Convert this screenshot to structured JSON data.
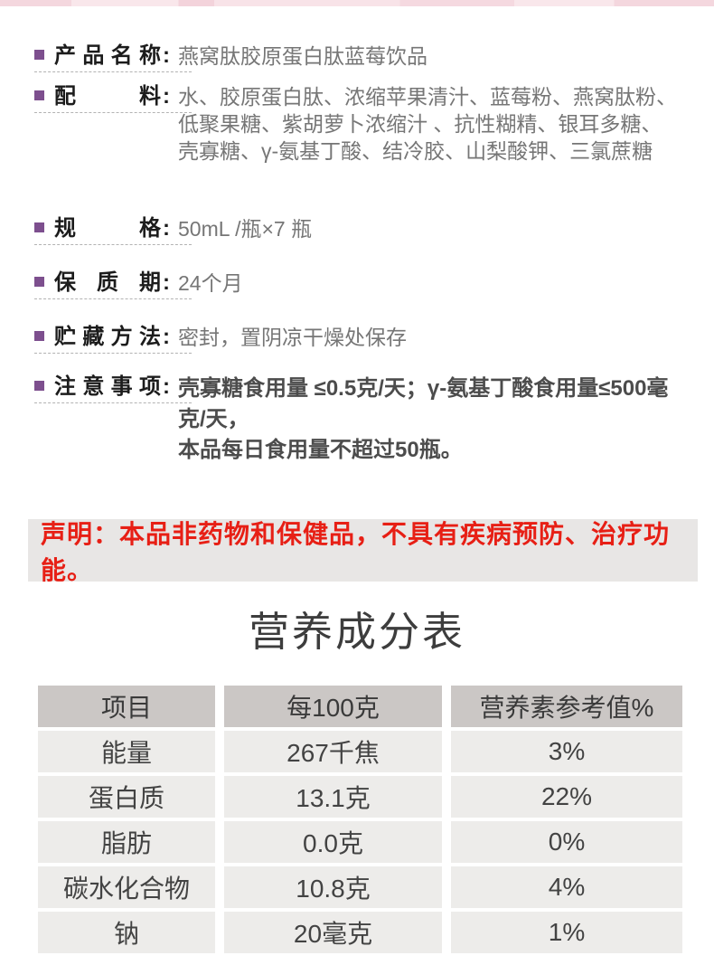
{
  "page": {
    "accent_purple": "#7d4f8e",
    "top_strip_color": "#f6dde4",
    "background": "#ffffff"
  },
  "product_info": {
    "colon": ":",
    "rows": [
      {
        "label": "产品名称",
        "value": "燕窝肽胶原蛋白肽蓝莓饮品",
        "emphasis": false
      },
      {
        "label": "配料",
        "value": "水、胶原蛋白肽、浓缩苹果清汁、蓝莓粉、燕窝肽粉、\n低聚果糖、紫胡萝卜浓缩汁 、抗性糊精、银耳多糖、\n壳寡糖、γ-氨基丁酸、结冷胶、山梨酸钾、三氯蔗糖",
        "emphasis": false
      },
      {
        "label": "规格",
        "value": "50mL /瓶×7 瓶",
        "emphasis": false
      },
      {
        "label": "保质期",
        "value": "24个月",
        "emphasis": false
      },
      {
        "label": "贮藏方法",
        "value": "密封，置阴凉干燥处保存",
        "emphasis": false
      },
      {
        "label": "注意事项",
        "value": "壳寡糖食用量 ≤0.5克/天；γ-氨基丁酸食用量≤500毫克/天，\n本品每日食用量不超过50瓶。",
        "emphasis": true
      }
    ]
  },
  "declaration": {
    "text": "声明：本品非药物和保健品，不具有疾病预防、治疗功能。",
    "text_color": "#e71f15",
    "bg_color": "#e8e6e5"
  },
  "nutrition": {
    "title": "营养成分表",
    "headers": [
      "项目",
      "每100克",
      "营养素参考值%"
    ],
    "rows": [
      [
        "能量",
        "267千焦",
        "3%"
      ],
      [
        "蛋白质",
        "13.1克",
        "22%"
      ],
      [
        "脂肪",
        "0.0克",
        "0%"
      ],
      [
        "碳水化合物",
        "10.8克",
        "4%"
      ],
      [
        "钠",
        "20毫克",
        "1%"
      ]
    ],
    "header_bg": "#cbc7c5",
    "row_bg": "#edecea"
  }
}
